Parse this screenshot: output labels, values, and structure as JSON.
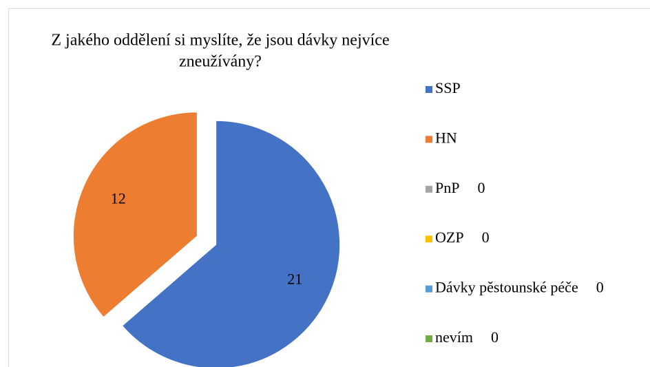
{
  "chart_data": {
    "type": "pie",
    "title": [
      "Z jakého oddělení si myslíte, že jsou dávky nejvíce",
      "zneužívány?"
    ],
    "categories": [
      "SSP",
      "HN",
      "PnP",
      "OZP",
      "Dávky pěstounské péče",
      "nevím"
    ],
    "values": [
      21,
      12,
      0,
      0,
      0,
      0
    ],
    "colors": [
      "#4472c4",
      "#ed7d31",
      "#a5a5a5",
      "#ffc000",
      "#5b9bd5",
      "#70ad47"
    ],
    "legend": "right"
  }
}
